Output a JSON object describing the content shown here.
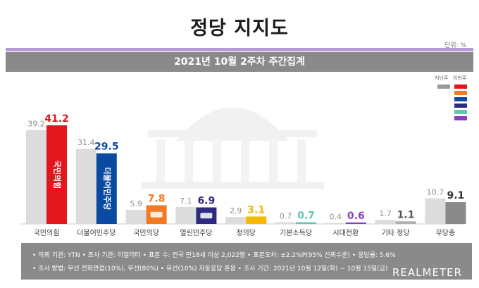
{
  "title": "정당 지지도",
  "unit": "단위: %",
  "subtitle": "2021년 10월 2주차 주간집계",
  "legend": {
    "prev_label": "지난주",
    "this_label": "이번주",
    "colors": [
      "#e3151d",
      "#f47920",
      "#0b4aa2",
      "#2e2a7f",
      "#5fc7b2",
      "#8b3fbf"
    ]
  },
  "footer": {
    "line1": "• 의뢰 기관: YTN • 조사 기관: 리얼미터 • 표본 수: 전국 만18세 이상 2,022명 • 표본오차: ±2.2%P(95% 신뢰수준) • 응답률: 5.6%",
    "line2": "• 조사 방법: 무선 전화면접(10%), 무선(80%) • 유선(10%) 자동응답 혼용 • 조사 기간: 2021년 10월 12일(화) ~ 10월 15일(금)",
    "brand": "REALMETER"
  },
  "chart_data": {
    "type": "bar",
    "categories": [
      "국민의힘",
      "더불어민주당",
      "국민의당",
      "열린민주당",
      "정의당",
      "기본소득당",
      "시대전환",
      "기타 정당",
      "무당층"
    ],
    "series": [
      {
        "name": "지난주",
        "values": [
          39.2,
          31.4,
          5.9,
          7.1,
          2.9,
          0.7,
          0.4,
          1.7,
          10.7
        ]
      },
      {
        "name": "이번주",
        "values": [
          41.2,
          29.5,
          7.8,
          6.9,
          3.1,
          0.7,
          0.6,
          1.1,
          9.1
        ]
      }
    ],
    "colors_this_week": [
      "#e3151d",
      "#0b4aa2",
      "#f47920",
      "#2e2a7f",
      "#f5b800",
      "#5fc7b2",
      "#8b3fbf",
      "#b0b0b0",
      "#8a8a8a"
    ],
    "label_colors_this_week": [
      "#e3151d",
      "#0b4aa2",
      "#f47920",
      "#2e2a7f",
      "#f5b800",
      "#5fc7b2",
      "#8b3fbf",
      "#555555",
      "#333333"
    ],
    "bar_inner_labels": [
      "국민의힘",
      "더불어민주당",
      "",
      "",
      "",
      "",
      "",
      "",
      ""
    ],
    "ylim": [
      0,
      45
    ]
  }
}
